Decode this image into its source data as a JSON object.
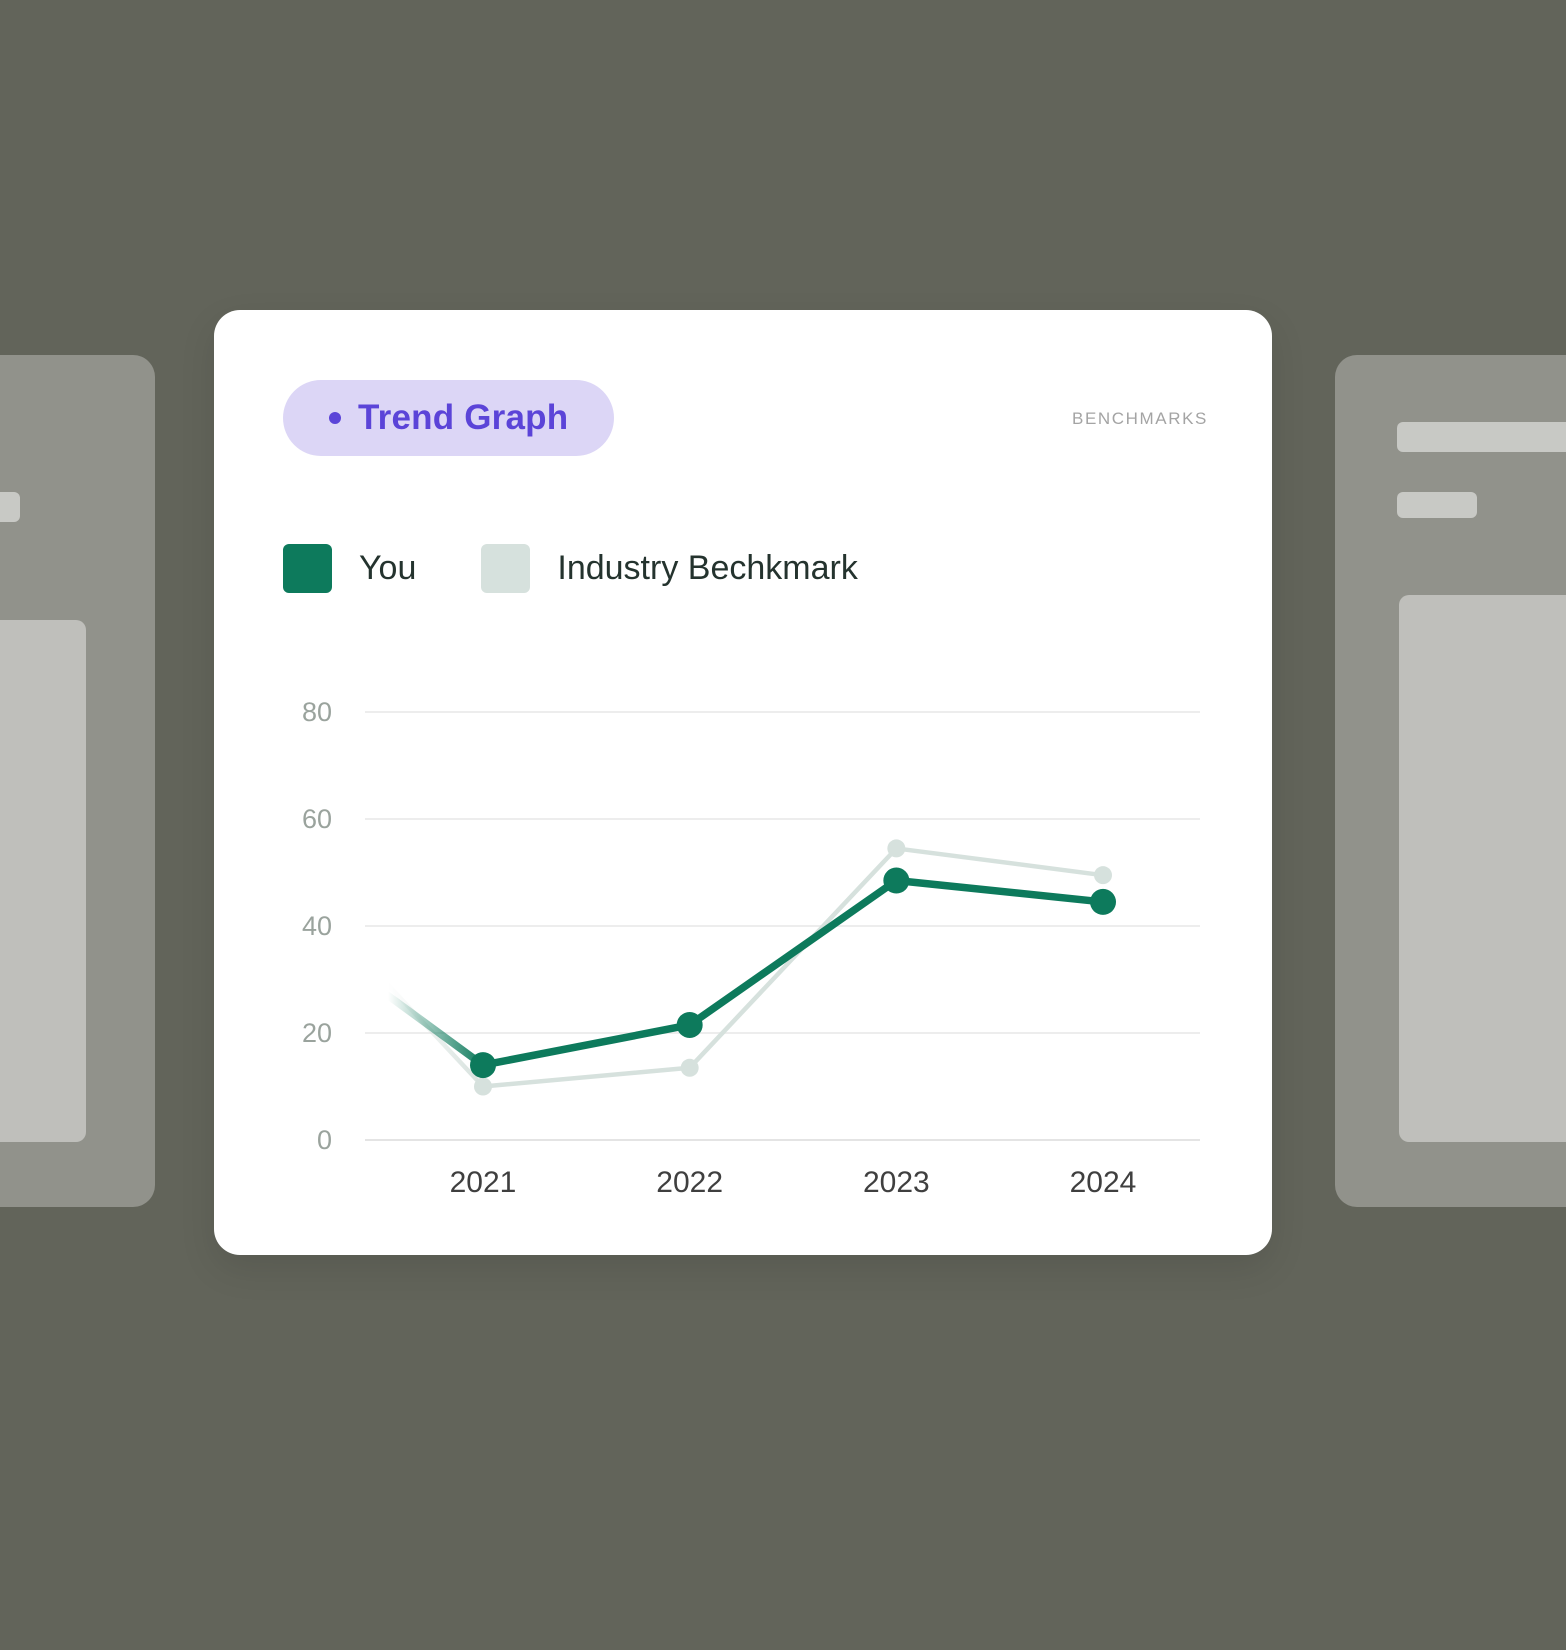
{
  "badge": {
    "label": "Trend Graph"
  },
  "benchmarks_label": "BENCHMARKS",
  "legend": [
    {
      "name": "You",
      "color": "#0d7a5c"
    },
    {
      "name": "Industry Bechkmark",
      "color": "#d6e1dd"
    }
  ],
  "chart_data": {
    "type": "line",
    "title": "Trend Graph",
    "x": [
      "2021",
      "2022",
      "2023",
      "2024"
    ],
    "series": [
      {
        "name": "You",
        "color": "#0d7a5c",
        "values": [
          14,
          21.5,
          48.5,
          44.5
        ],
        "lead_in_value": 27
      },
      {
        "name": "Industry Bechkmark",
        "color": "#d6e1dd",
        "values": [
          10,
          13.5,
          54.5,
          49.5
        ],
        "lead_in_value": 29
      }
    ],
    "yticks": [
      0,
      20,
      40,
      60,
      80
    ],
    "ylim": [
      0,
      80
    ],
    "grid": true,
    "legend_position": "top-left",
    "xlabel": "",
    "ylabel": ""
  },
  "colors": {
    "page_bg": "#62645a",
    "card_bg": "#ffffff",
    "accent_purple": "#5b44d8",
    "badge_bg": "#dcd6f6",
    "you_green": "#0d7a5c",
    "benchmark_gray": "#d6e1dd",
    "gridline": "#ededed",
    "axis_text": "#9aa39d",
    "x_tick_text": "#3f3f3f"
  }
}
